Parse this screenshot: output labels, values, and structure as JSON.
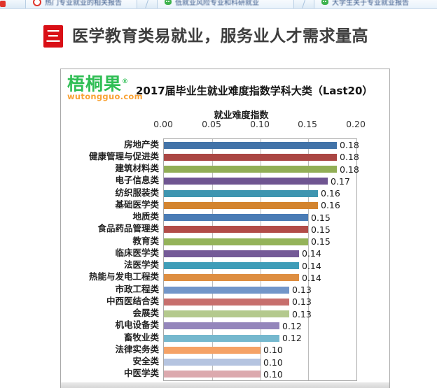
{
  "browser_tabs": {
    "items": [
      {
        "icon": "red-ring-icon",
        "label": "热门专业就业的相关报告"
      },
      {
        "icon": "green-chat-icon",
        "label": "低就业风险专业和科研就业"
      },
      {
        "icon": "green-chat-icon",
        "label": "大学生关于专业就业报告"
      }
    ]
  },
  "header": {
    "icon_glyph": "三",
    "icon_color": "#d90f16",
    "title": "医学教育类易就业，服务业人才需求量高"
  },
  "logo": {
    "name": "梧桐果",
    "reg": "®",
    "url": "wutongguo.com",
    "green": "#2fbe54",
    "orange": "#f9a234"
  },
  "chart_data": {
    "type": "bar",
    "orientation": "horizontal",
    "title": "2017届毕业生就业难度指数学科大类（Last20）",
    "xlabel": "就业难度指数",
    "xlim": [
      0.0,
      0.2
    ],
    "x_ticks": [
      "0.00",
      "0.05",
      "0.10",
      "0.15",
      "0.20"
    ],
    "grid": true,
    "legend": false,
    "categories": [
      "房地产类",
      "健康管理与促进类",
      "建筑材料类",
      "电子信息类",
      "纺织服装类",
      "基础医学类",
      "地质类",
      "食品药品管理类",
      "教育类",
      "临床医学类",
      "法医学类",
      "热能与发电工程类",
      "市政工程类",
      "中西医结合类",
      "会展类",
      "机电设备类",
      "畜牧业类",
      "法律实务类",
      "安全类",
      "中医学类"
    ],
    "values": [
      0.18,
      0.18,
      0.18,
      0.17,
      0.16,
      0.16,
      0.15,
      0.15,
      0.15,
      0.14,
      0.14,
      0.14,
      0.13,
      0.13,
      0.13,
      0.12,
      0.12,
      0.1,
      0.1,
      0.1
    ],
    "value_labels": [
      "0.18",
      "0.18",
      "0.18",
      "0.17",
      "0.16",
      "0.16",
      "0.15",
      "0.15",
      "0.15",
      "0.14",
      "0.14",
      "0.14",
      "0.13",
      "0.13",
      "0.13",
      "0.12",
      "0.12",
      "0.10",
      "0.10",
      "0.10"
    ],
    "bar_colors": [
      "#4273A8",
      "#AA4643",
      "#91AE55",
      "#6F5591",
      "#3E95B0",
      "#D3842F",
      "#4A7CB5",
      "#B24C48",
      "#94B359",
      "#745A97",
      "#3F9DB8",
      "#DE8E41",
      "#7296C9",
      "#C76F6D",
      "#B4C98D",
      "#9486BB",
      "#75B8CE",
      "#F5A266",
      "#B5C4E0",
      "#DCA9AE"
    ]
  }
}
